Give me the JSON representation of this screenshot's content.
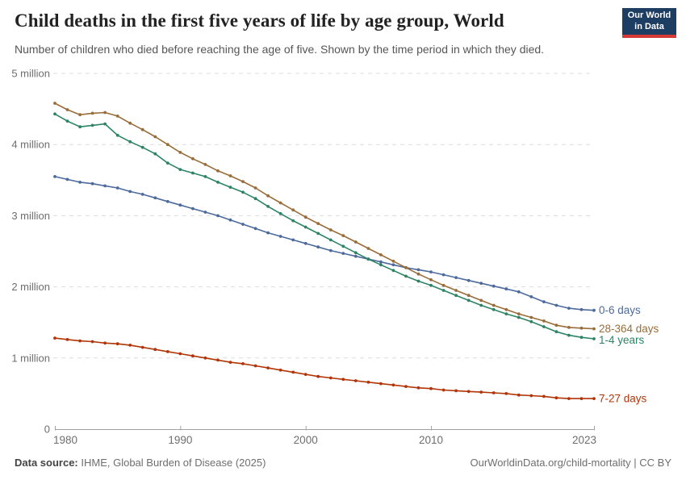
{
  "header": {
    "title": "Child deaths in the first five years of life by age group, World",
    "subtitle": "Number of children who died before reaching the age of five. Shown by the time period in which they died.",
    "logo": {
      "line1": "Our World",
      "line2": "in Data",
      "bg_color": "#1d3d63",
      "accent_color": "#d73a36"
    }
  },
  "footer": {
    "source_label": "Data source:",
    "source_text": " IHME, Global Burden of Disease (2025)",
    "attribution": "OurWorldinData.org/child-mortality | CC BY"
  },
  "chart_data": {
    "type": "line",
    "title": "Child deaths in the first five years of life by age group, World",
    "values_unit": "millions of deaths",
    "ylim_millions": [
      0,
      5
    ],
    "grid": "horizontal dashed",
    "legend_position": "end-of-line labels, right of plot",
    "x_ticks": [
      1980,
      1990,
      2000,
      2010,
      2023
    ],
    "y_ticks": [
      {
        "value": 0,
        "label": "0"
      },
      {
        "value": 1,
        "label": "1 million"
      },
      {
        "value": 2,
        "label": "2 million"
      },
      {
        "value": 3,
        "label": "3 million"
      },
      {
        "value": 4,
        "label": "4 million"
      },
      {
        "value": 5,
        "label": "5 million"
      }
    ],
    "x": [
      1980,
      1981,
      1982,
      1983,
      1984,
      1985,
      1986,
      1987,
      1988,
      1989,
      1990,
      1991,
      1992,
      1993,
      1994,
      1995,
      1996,
      1997,
      1998,
      1999,
      2000,
      2001,
      2002,
      2003,
      2004,
      2005,
      2006,
      2007,
      2008,
      2009,
      2010,
      2011,
      2012,
      2013,
      2014,
      2015,
      2016,
      2017,
      2018,
      2019,
      2020,
      2021,
      2022,
      2023
    ],
    "series": [
      {
        "name": "0-6 days",
        "color": "#4c6a9c",
        "values": [
          3.55,
          3.51,
          3.47,
          3.45,
          3.42,
          3.39,
          3.34,
          3.3,
          3.25,
          3.2,
          3.15,
          3.1,
          3.05,
          3.0,
          2.94,
          2.88,
          2.82,
          2.76,
          2.71,
          2.66,
          2.61,
          2.56,
          2.51,
          2.47,
          2.43,
          2.39,
          2.35,
          2.31,
          2.27,
          2.24,
          2.21,
          2.17,
          2.13,
          2.09,
          2.05,
          2.01,
          1.97,
          1.93,
          1.86,
          1.79,
          1.74,
          1.7,
          1.68,
          1.67
        ]
      },
      {
        "name": "28-364 days",
        "color": "#996d39",
        "values": [
          4.58,
          4.49,
          4.42,
          4.44,
          4.45,
          4.4,
          4.3,
          4.21,
          4.11,
          4.0,
          3.89,
          3.8,
          3.72,
          3.63,
          3.56,
          3.48,
          3.39,
          3.28,
          3.18,
          3.08,
          2.98,
          2.89,
          2.8,
          2.72,
          2.63,
          2.54,
          2.45,
          2.36,
          2.27,
          2.18,
          2.1,
          2.02,
          1.95,
          1.88,
          1.81,
          1.74,
          1.68,
          1.62,
          1.57,
          1.52,
          1.46,
          1.43,
          1.42,
          1.41
        ]
      },
      {
        "name": "1-4 years",
        "color": "#2c8465",
        "values": [
          4.43,
          4.33,
          4.25,
          4.27,
          4.29,
          4.13,
          4.04,
          3.96,
          3.87,
          3.74,
          3.65,
          3.6,
          3.55,
          3.47,
          3.4,
          3.33,
          3.24,
          3.13,
          3.03,
          2.93,
          2.84,
          2.75,
          2.66,
          2.57,
          2.48,
          2.39,
          2.31,
          2.23,
          2.15,
          2.08,
          2.02,
          1.95,
          1.88,
          1.81,
          1.74,
          1.68,
          1.62,
          1.57,
          1.51,
          1.44,
          1.37,
          1.32,
          1.29,
          1.27
        ]
      },
      {
        "name": "7-27 days",
        "color": "#b13507",
        "values": [
          1.28,
          1.26,
          1.24,
          1.23,
          1.21,
          1.2,
          1.18,
          1.15,
          1.12,
          1.09,
          1.06,
          1.03,
          1.0,
          0.97,
          0.94,
          0.92,
          0.89,
          0.86,
          0.83,
          0.8,
          0.77,
          0.74,
          0.72,
          0.7,
          0.68,
          0.66,
          0.64,
          0.62,
          0.6,
          0.58,
          0.57,
          0.55,
          0.54,
          0.53,
          0.52,
          0.51,
          0.5,
          0.48,
          0.47,
          0.46,
          0.44,
          0.43,
          0.43,
          0.43
        ]
      }
    ]
  }
}
